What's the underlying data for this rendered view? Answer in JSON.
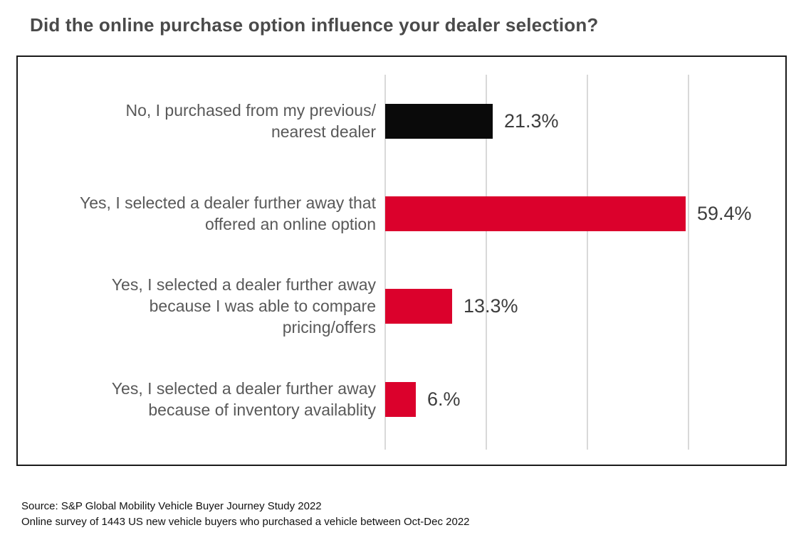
{
  "chart_data": {
    "type": "bar",
    "orientation": "horizontal",
    "title": "Did the online purchase option influence your dealer selection?",
    "xlabel": "",
    "ylabel": "",
    "xlim": [
      0,
      77
    ],
    "grid": true,
    "gridlines_percent": [
      0,
      20,
      40,
      60
    ],
    "legend": false,
    "categories": [
      "No, I purchased from my previous/ nearest dealer",
      "Yes, I selected a dealer further away that offered an online option",
      "Yes, I selected a dealer further away because I was able to compare pricing/offers",
      "Yes, I selected a dealer further away because of inventory availablity"
    ],
    "values": [
      21.3,
      59.4,
      13.3,
      6
    ],
    "rows": [
      {
        "lines": "No, I purchased from my previous/\nnearest dealer",
        "value": 21.3,
        "value_label": "21.3%",
        "color": "#0a0a0a"
      },
      {
        "lines": "Yes, I selected a dealer further away that\noffered an online option",
        "value": 59.4,
        "value_label": "59.4%",
        "color": "#db012c"
      },
      {
        "lines": "Yes, I selected a dealer further away\nbecause I was able to compare\npricing/offers",
        "value": 13.3,
        "value_label": "13.3%",
        "color": "#db012c"
      },
      {
        "lines": "Yes, I selected a dealer further away\nbecause of inventory availablity",
        "value": 6,
        "value_label": "6.%",
        "color": "#db012c"
      }
    ]
  },
  "colors": {
    "accent_red": "#db012c",
    "bar_black": "#0a0a0a",
    "title_gray": "#4a4a4a",
    "category_gray": "#595959",
    "value_gray": "#3d3d3d",
    "gridline_gray": "#d9d9d9",
    "frame_border": "#1a1a1a"
  },
  "footer": {
    "source_line1": "Source: S&P Global Mobility Vehicle Buyer Journey Study 2022",
    "source_line2": "Online survey of 1443 US new vehicle buyers who purchased a vehicle between Oct-Dec 2022"
  }
}
